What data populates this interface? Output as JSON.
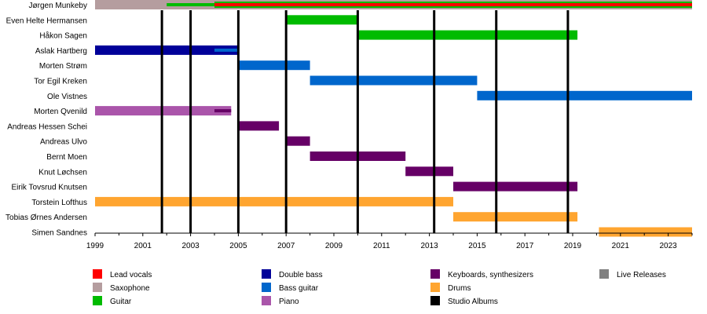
{
  "chart_data": {
    "type": "timeline",
    "xlim": [
      1999,
      2024
    ],
    "x_ticks": [
      1999,
      2001,
      2003,
      2005,
      2007,
      2009,
      2011,
      2013,
      2015,
      2017,
      2019,
      2021,
      2023
    ],
    "colors": {
      "Lead vocals": "#ff0000",
      "Saxophone": "#b59d9f",
      "Guitar": "#00bb00",
      "Double bass": "#000099",
      "Bass guitar": "#0066cc",
      "Piano": "#aa55aa",
      "Keyboards, synthesizers": "#660066",
      "Drums": "#ffa530",
      "Studio Albums": "#000000",
      "Live Releases": "#808080"
    },
    "legend": [
      [
        "Lead vocals",
        "Saxophone",
        "Guitar"
      ],
      [
        "Double bass",
        "Bass guitar",
        "Piano"
      ],
      [
        "Keyboards, synthesizers",
        "Drums",
        "Studio Albums"
      ],
      [
        "Live Releases"
      ]
    ],
    "studio_albums": [
      2001.8,
      2003.0,
      2005.0,
      2007.0,
      2010.0,
      2013.2,
      2015.8,
      2018.8
    ],
    "members": [
      {
        "name": "Jørgen Munkeby",
        "bars": [
          {
            "role": "Saxophone",
            "from": 1999,
            "to": 2024
          },
          {
            "role": "Guitar",
            "from": 2002,
            "to": 2004,
            "thin": true
          },
          {
            "role": "Guitar",
            "from": 2004,
            "to": 2024,
            "outline": true
          },
          {
            "role": "Lead vocals",
            "from": 2004,
            "to": 2024,
            "thin": true
          }
        ]
      },
      {
        "name": "Even Helte Hermansen",
        "bars": [
          {
            "role": "Guitar",
            "from": 2007,
            "to": 2010
          }
        ]
      },
      {
        "name": "Håkon Sagen",
        "bars": [
          {
            "role": "Guitar",
            "from": 2010,
            "to": 2019.2
          }
        ]
      },
      {
        "name": "Aslak Hartberg",
        "bars": [
          {
            "role": "Double bass",
            "from": 1999,
            "to": 2005
          },
          {
            "role": "Bass guitar",
            "from": 2004,
            "to": 2005,
            "thin": true
          }
        ]
      },
      {
        "name": "Morten Strøm",
        "bars": [
          {
            "role": "Bass guitar",
            "from": 2005,
            "to": 2008
          }
        ]
      },
      {
        "name": "Tor Egil Kreken",
        "bars": [
          {
            "role": "Bass guitar",
            "from": 2008,
            "to": 2015
          }
        ]
      },
      {
        "name": "Ole Vistnes",
        "bars": [
          {
            "role": "Bass guitar",
            "from": 2015,
            "to": 2024
          }
        ]
      },
      {
        "name": "Morten Qvenild",
        "bars": [
          {
            "role": "Piano",
            "from": 1999,
            "to": 2004.7
          },
          {
            "role": "Keyboards, synthesizers",
            "from": 2004,
            "to": 2004.7,
            "thin": true
          }
        ]
      },
      {
        "name": "Andreas Hessen Schei",
        "bars": [
          {
            "role": "Keyboards, synthesizers",
            "from": 2005,
            "to": 2006.7
          }
        ]
      },
      {
        "name": "Andreas Ulvo",
        "bars": [
          {
            "role": "Keyboards, synthesizers",
            "from": 2007,
            "to": 2008
          }
        ]
      },
      {
        "name": "Bernt Moen",
        "bars": [
          {
            "role": "Keyboards, synthesizers",
            "from": 2008,
            "to": 2012
          }
        ]
      },
      {
        "name": "Knut Løchsen",
        "bars": [
          {
            "role": "Keyboards, synthesizers",
            "from": 2012,
            "to": 2014
          }
        ]
      },
      {
        "name": "Eirik Tovsrud Knutsen",
        "bars": [
          {
            "role": "Keyboards, synthesizers",
            "from": 2014,
            "to": 2019.2
          }
        ]
      },
      {
        "name": "Torstein Lofthus",
        "bars": [
          {
            "role": "Drums",
            "from": 1999,
            "to": 2014
          }
        ]
      },
      {
        "name": "Tobias Ørnes Andersen",
        "bars": [
          {
            "role": "Drums",
            "from": 2014,
            "to": 2019.2
          }
        ]
      },
      {
        "name": "Simen Sandnes",
        "bars": [
          {
            "role": "Drums",
            "from": 2020.1,
            "to": 2024
          }
        ]
      }
    ]
  }
}
